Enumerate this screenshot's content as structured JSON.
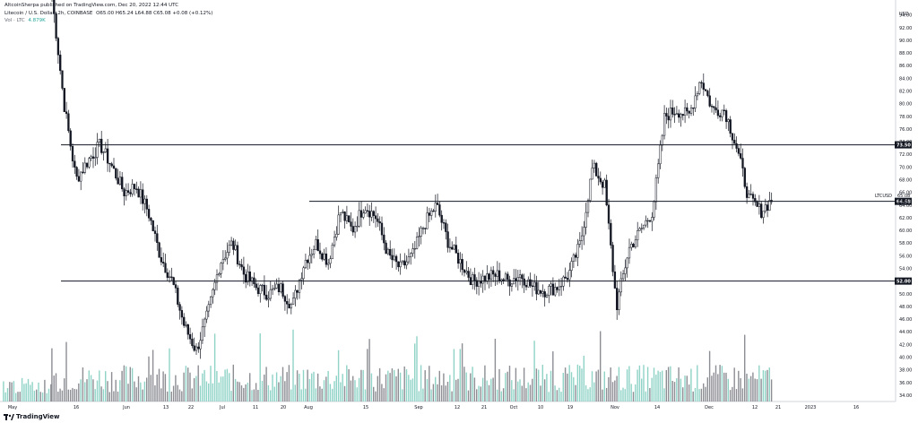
{
  "header": {
    "publisher": "AltcoinSherpa published on TradingView.com, Dec 20, 2022 12:44 UTC",
    "symbol": "Litecoin / U.S. Dollar, 2h, COINBASE",
    "ohlc": "O65.00 H65.24 L64.88 C65.08 +0.08 (+0.12%)",
    "volume_label": "Vol · LTC",
    "volume_value": "4.879K"
  },
  "logo": {
    "text": "TradingView",
    "icon": "tradingview-logo-icon"
  },
  "chart_data": {
    "type": "candlestick",
    "title": "Litecoin / U.S. Dollar, 2h, COINBASE",
    "y_axis_ticks": [
      34,
      36,
      38,
      40,
      42,
      44,
      46,
      48,
      50,
      52,
      54,
      56,
      58,
      60,
      62,
      64,
      66,
      68,
      70,
      72,
      74,
      76,
      78,
      80,
      82,
      84,
      86,
      88,
      90,
      92,
      94
    ],
    "y_axis_top_label": "USD",
    "ylim": [
      33.0,
      95.5
    ],
    "x_axis_ticks": [
      "May",
      "16",
      "Jun",
      "13",
      "22",
      "Jul",
      "11",
      "20",
      "Aug",
      "15",
      "Sep",
      "12",
      "21",
      "Oct",
      "10",
      "19",
      "Nov",
      "14",
      "Dec",
      "12",
      "21",
      "2023",
      "16"
    ],
    "price_levels": [
      {
        "value": 73.5,
        "label": "73.50",
        "x_start_tick": "16"
      },
      {
        "value": 52.0,
        "label": "52.00",
        "x_start_tick": "May"
      },
      {
        "value": 64.58,
        "label": "64.58",
        "x_start_tick": "Aug"
      }
    ],
    "last_price": {
      "label": "LTCUSD",
      "value": "65.08",
      "countdown": "15:57"
    },
    "price_path": [
      {
        "t": "May",
        "p": 97
      },
      {
        "t": "May",
        "p": 80
      },
      {
        "t": "May",
        "p": 68
      },
      {
        "t": "May",
        "p": 71
      },
      {
        "t": "16",
        "p": 73.5
      },
      {
        "t": "16",
        "p": 70
      },
      {
        "t": "16",
        "p": 66
      },
      {
        "t": "16",
        "p": 67
      },
      {
        "t": "Jun",
        "p": 63
      },
      {
        "t": "Jun",
        "p": 56
      },
      {
        "t": "Jun",
        "p": 52
      },
      {
        "t": "13",
        "p": 45
      },
      {
        "t": "13",
        "p": 41
      },
      {
        "t": "13",
        "p": 47
      },
      {
        "t": "22",
        "p": 55
      },
      {
        "t": "22",
        "p": 58
      },
      {
        "t": "Jul",
        "p": 53
      },
      {
        "t": "Jul",
        "p": 51
      },
      {
        "t": "Jul",
        "p": 50
      },
      {
        "t": "11",
        "p": 51
      },
      {
        "t": "11",
        "p": 48
      },
      {
        "t": "20",
        "p": 55
      },
      {
        "t": "20",
        "p": 58
      },
      {
        "t": "20",
        "p": 55
      },
      {
        "t": "Aug",
        "p": 63
      },
      {
        "t": "Aug",
        "p": 60
      },
      {
        "t": "15",
        "p": 64
      },
      {
        "t": "15",
        "p": 62
      },
      {
        "t": "15",
        "p": 56
      },
      {
        "t": "15",
        "p": 54
      },
      {
        "t": "Sep",
        "p": 56
      },
      {
        "t": "Sep",
        "p": 61
      },
      {
        "t": "12",
        "p": 64
      },
      {
        "t": "12",
        "p": 58
      },
      {
        "t": "12",
        "p": 55
      },
      {
        "t": "21",
        "p": 52
      },
      {
        "t": "21",
        "p": 52.5
      },
      {
        "t": "Oct",
        "p": 53
      },
      {
        "t": "Oct",
        "p": 52
      },
      {
        "t": "10",
        "p": 53
      },
      {
        "t": "10",
        "p": 51
      },
      {
        "t": "19",
        "p": 50.5
      },
      {
        "t": "19",
        "p": 51
      },
      {
        "t": "19",
        "p": 53
      },
      {
        "t": "Nov",
        "p": 58
      },
      {
        "t": "Nov",
        "p": 70
      },
      {
        "t": "Nov",
        "p": 67
      },
      {
        "t": "14",
        "p": 48
      },
      {
        "t": "14",
        "p": 57
      },
      {
        "t": "14",
        "p": 60
      },
      {
        "t": "14",
        "p": 63
      },
      {
        "t": "14",
        "p": 78
      },
      {
        "t": "14",
        "p": 79
      },
      {
        "t": "Dec",
        "p": 78
      },
      {
        "t": "Dec",
        "p": 84
      },
      {
        "t": "Dec",
        "p": 79
      },
      {
        "t": "12",
        "p": 79
      },
      {
        "t": "12",
        "p": 73
      },
      {
        "t": "12",
        "p": 65
      },
      {
        "t": "12",
        "p": 63
      },
      {
        "t": "12",
        "p": 65
      }
    ],
    "colors": {
      "up": "#ffffff",
      "down": "#131722",
      "wick": "#131722",
      "volume_up": "#8fd3c6",
      "volume_down": "#8c8e94",
      "level_line": "#131722",
      "level_label_bg": "#131722",
      "level_label_fg": "#ffffff"
    },
    "grid": false
  }
}
